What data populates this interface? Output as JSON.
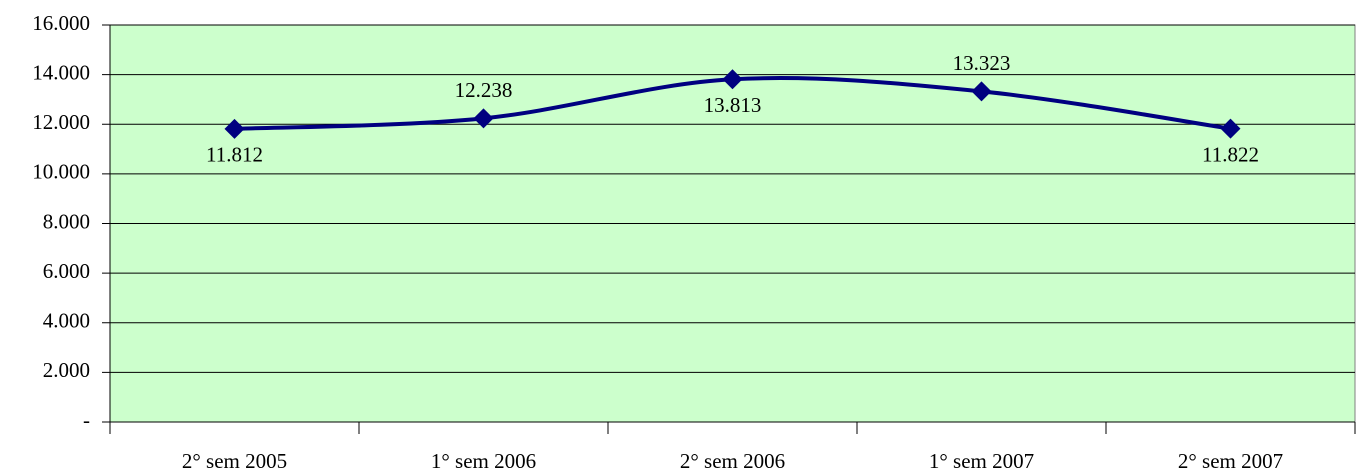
{
  "chart_data": {
    "type": "line",
    "categories": [
      "2° sem 2005",
      "1° sem 2006",
      "2° sem 2006",
      "1° sem 2007",
      "2° sem 2007"
    ],
    "series": [
      {
        "color": "#000080",
        "values": [
          11812,
          12238,
          13813,
          13323,
          11822
        ],
        "value_labels": [
          "11.812",
          "12.238",
          "13.813",
          "13.323",
          "11.822"
        ]
      }
    ],
    "ylim": [
      0,
      16000
    ],
    "yticks": [
      {
        "value": 0,
        "label": "-"
      },
      {
        "value": 2000,
        "label": "2.000"
      },
      {
        "value": 4000,
        "label": "4.000"
      },
      {
        "value": 6000,
        "label": "6.000"
      },
      {
        "value": 8000,
        "label": "8.000"
      },
      {
        "value": 10000,
        "label": "10.000"
      },
      {
        "value": 12000,
        "label": "12.000"
      },
      {
        "value": 14000,
        "label": "14.000"
      },
      {
        "value": 16000,
        "label": "16.000"
      }
    ],
    "grid": true,
    "plot_background": "#ccffcc"
  }
}
